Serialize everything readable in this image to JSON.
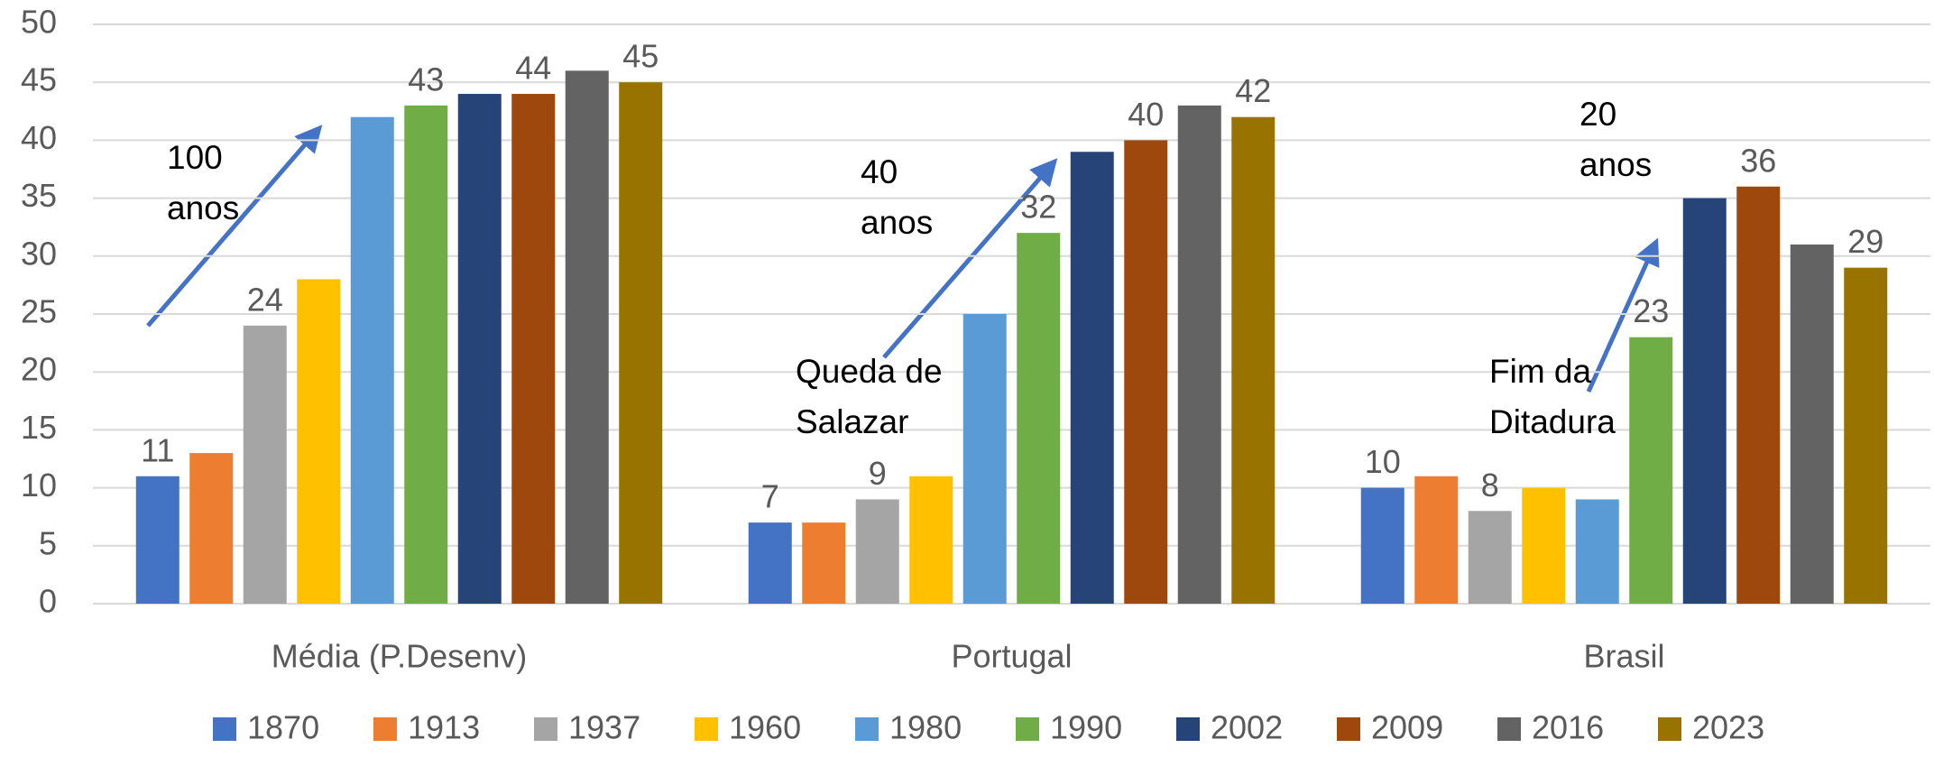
{
  "chart_data": {
    "type": "bar",
    "categories": [
      "Média (P.Desenv)",
      "Portugal",
      "Brasil"
    ],
    "series": [
      {
        "name": "1870",
        "color": "#4472c4",
        "values": [
          11,
          7,
          10
        ],
        "data_labels": true
      },
      {
        "name": "1913",
        "color": "#ed7d31",
        "values": [
          13,
          7,
          11
        ],
        "data_labels": false
      },
      {
        "name": "1937",
        "color": "#a5a5a5",
        "values": [
          24,
          9,
          8
        ],
        "data_labels": true
      },
      {
        "name": "1960",
        "color": "#ffc000",
        "values": [
          28,
          11,
          10
        ],
        "data_labels": false
      },
      {
        "name": "1980",
        "color": "#5b9bd5",
        "values": [
          42,
          25,
          9
        ],
        "data_labels": false
      },
      {
        "name": "1990",
        "color": "#70ad47",
        "values": [
          43,
          32,
          23
        ],
        "data_labels": true
      },
      {
        "name": "2002",
        "color": "#264478",
        "values": [
          44,
          39,
          35
        ],
        "data_labels": false
      },
      {
        "name": "2009",
        "color": "#9e480e",
        "values": [
          44,
          40,
          36
        ],
        "data_labels": true
      },
      {
        "name": "2016",
        "color": "#636363",
        "values": [
          46,
          43,
          31
        ],
        "data_labels": false
      },
      {
        "name": "2023",
        "color": "#997300",
        "values": [
          45,
          42,
          29
        ],
        "data_labels": true
      }
    ],
    "ylim": [
      0,
      50
    ],
    "yticks": [
      0,
      5,
      10,
      15,
      20,
      25,
      30,
      35,
      40,
      45,
      50
    ],
    "grid": true,
    "legend": "bottom",
    "annotations": [
      {
        "lines": [
          "100",
          "anos"
        ]
      },
      {
        "lines": [
          "40",
          "anos"
        ]
      },
      {
        "lines": [
          "Queda de",
          "Salazar"
        ]
      },
      {
        "lines": [
          "20",
          "anos"
        ]
      },
      {
        "lines": [
          "Fim da",
          "Ditadura"
        ]
      }
    ]
  }
}
